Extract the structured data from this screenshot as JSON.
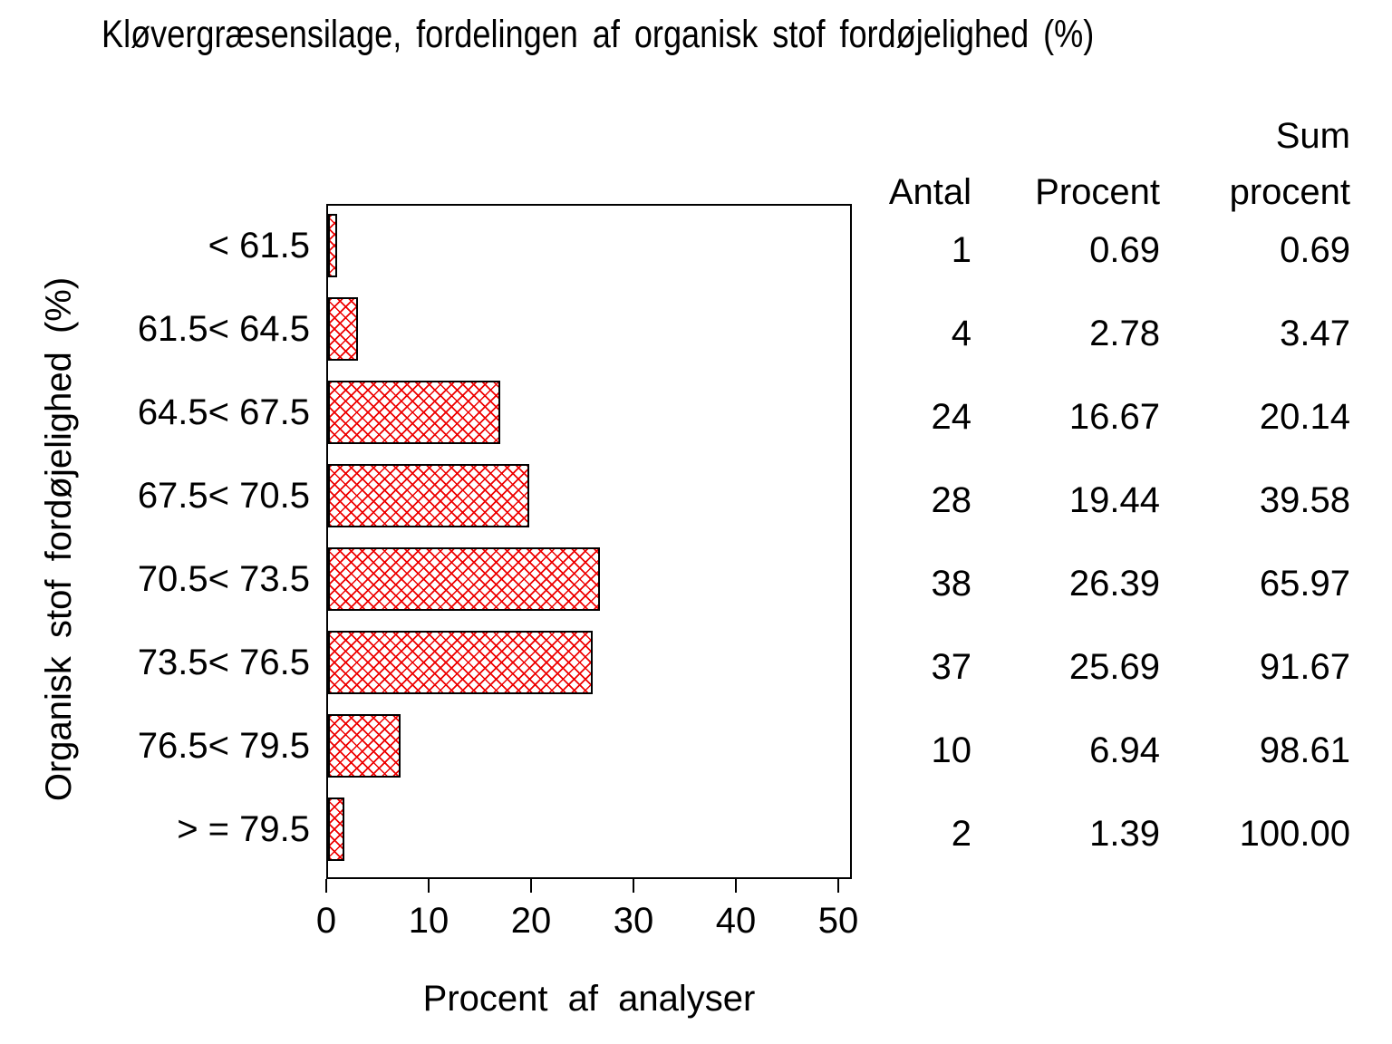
{
  "title": "Kløvergræsensilage, fordelingen af organisk stof fordøjelighed (%)",
  "colors": {
    "bar_hatch": "#ee0000",
    "bar_border": "#000000",
    "text": "#000000",
    "background": "#ffffff"
  },
  "chart_data": {
    "type": "bar",
    "orientation": "horizontal",
    "title": "Kløvergræsensilage, fordelingen af organisk stof fordøjelighed (%)",
    "xlabel": "Procent af analyser",
    "ylabel": "Organisk stof fordøjelighed (%)",
    "categories": [
      "< 61.5",
      "61.5< 64.5",
      "64.5< 67.5",
      "67.5< 70.5",
      "70.5< 73.5",
      "73.5< 76.5",
      "76.5< 79.5",
      "> = 79.5"
    ],
    "series": [
      {
        "name": "Procent af analyser",
        "values": [
          0.69,
          2.78,
          16.67,
          19.44,
          26.39,
          25.69,
          6.94,
          1.39
        ]
      },
      {
        "name": "Antal",
        "values": [
          1,
          4,
          24,
          28,
          38,
          37,
          10,
          2
        ]
      },
      {
        "name": "Sum procent",
        "values": [
          0.69,
          3.47,
          20.14,
          39.58,
          65.97,
          91.67,
          98.61,
          100.0
        ]
      }
    ],
    "xlim": [
      0,
      50
    ],
    "x_ticks": [
      "0",
      "10",
      "20",
      "30",
      "40",
      "50"
    ],
    "grid": false,
    "legend": "none",
    "bar_style": "red diagonal crosshatch fill with black outline"
  },
  "table": {
    "headers": {
      "antal": "Antal",
      "procent": "Procent",
      "sum_line1": "Sum",
      "sum_line2": "procent"
    },
    "rows": [
      {
        "label": "< 61.5",
        "antal": "1",
        "procent": "0.69",
        "sum": "0.69"
      },
      {
        "label": "61.5< 64.5",
        "antal": "4",
        "procent": "2.78",
        "sum": "3.47"
      },
      {
        "label": "64.5< 67.5",
        "antal": "24",
        "procent": "16.67",
        "sum": "20.14"
      },
      {
        "label": "67.5< 70.5",
        "antal": "28",
        "procent": "19.44",
        "sum": "39.58"
      },
      {
        "label": "70.5< 73.5",
        "antal": "38",
        "procent": "26.39",
        "sum": "65.97"
      },
      {
        "label": "73.5< 76.5",
        "antal": "37",
        "procent": "25.69",
        "sum": "91.67"
      },
      {
        "label": "76.5< 79.5",
        "antal": "10",
        "procent": "6.94",
        "sum": "98.61"
      },
      {
        "label": "> = 79.5",
        "antal": "2",
        "procent": "1.39",
        "sum": "100.00"
      }
    ]
  }
}
